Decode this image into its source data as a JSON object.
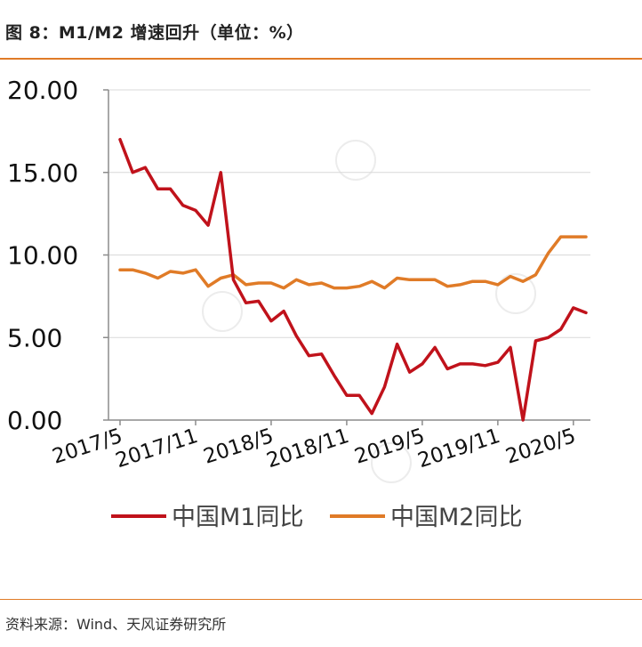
{
  "figure": {
    "title": "图 8：M1/M2 增速回升（单位：%）",
    "source": "资料来源：Wind、天风证券研究所"
  },
  "chart_data": {
    "type": "line",
    "title": "图 8：M1/M2 增速回升（单位：%）",
    "xlabel": "",
    "ylabel": "",
    "ylim": [
      0,
      20
    ],
    "yticks": [
      "0.00",
      "5.00",
      "10.00",
      "15.00",
      "20.00"
    ],
    "xtick_labels": [
      "2017/5",
      "2017/11",
      "2018/5",
      "2018/11",
      "2019/5",
      "2019/11",
      "2020/5"
    ],
    "grid": true,
    "legend_position": "bottom",
    "x": [
      "2017/5",
      "2017/6",
      "2017/7",
      "2017/8",
      "2017/9",
      "2017/10",
      "2017/11",
      "2017/12",
      "2018/1",
      "2018/2",
      "2018/3",
      "2018/4",
      "2018/5",
      "2018/6",
      "2018/7",
      "2018/8",
      "2018/9",
      "2018/10",
      "2018/11",
      "2018/12",
      "2019/1",
      "2019/2",
      "2019/3",
      "2019/4",
      "2019/5",
      "2019/6",
      "2019/7",
      "2019/8",
      "2019/9",
      "2019/10",
      "2019/11",
      "2019/12",
      "2020/1",
      "2020/2",
      "2020/3",
      "2020/4",
      "2020/5",
      "2020/6"
    ],
    "series": [
      {
        "name": "中国M1同比",
        "color": "#c0121b",
        "values": [
          17.0,
          15.0,
          15.3,
          14.0,
          14.0,
          13.0,
          12.7,
          11.8,
          15.0,
          8.5,
          7.1,
          7.2,
          6.0,
          6.6,
          5.1,
          3.9,
          4.0,
          2.7,
          1.5,
          1.5,
          0.4,
          2.0,
          4.6,
          2.9,
          3.4,
          4.4,
          3.1,
          3.4,
          3.4,
          3.3,
          3.5,
          4.4,
          0.0,
          4.8,
          5.0,
          5.5,
          6.8,
          6.5
        ]
      },
      {
        "name": "中国M2同比",
        "color": "#e07b27",
        "values": [
          9.1,
          9.1,
          8.9,
          8.6,
          9.0,
          8.9,
          9.1,
          8.1,
          8.6,
          8.8,
          8.2,
          8.3,
          8.3,
          8.0,
          8.5,
          8.2,
          8.3,
          8.0,
          8.0,
          8.1,
          8.4,
          8.0,
          8.6,
          8.5,
          8.5,
          8.5,
          8.1,
          8.2,
          8.4,
          8.4,
          8.2,
          8.7,
          8.4,
          8.8,
          10.1,
          11.1,
          11.1,
          11.1
        ]
      }
    ]
  }
}
